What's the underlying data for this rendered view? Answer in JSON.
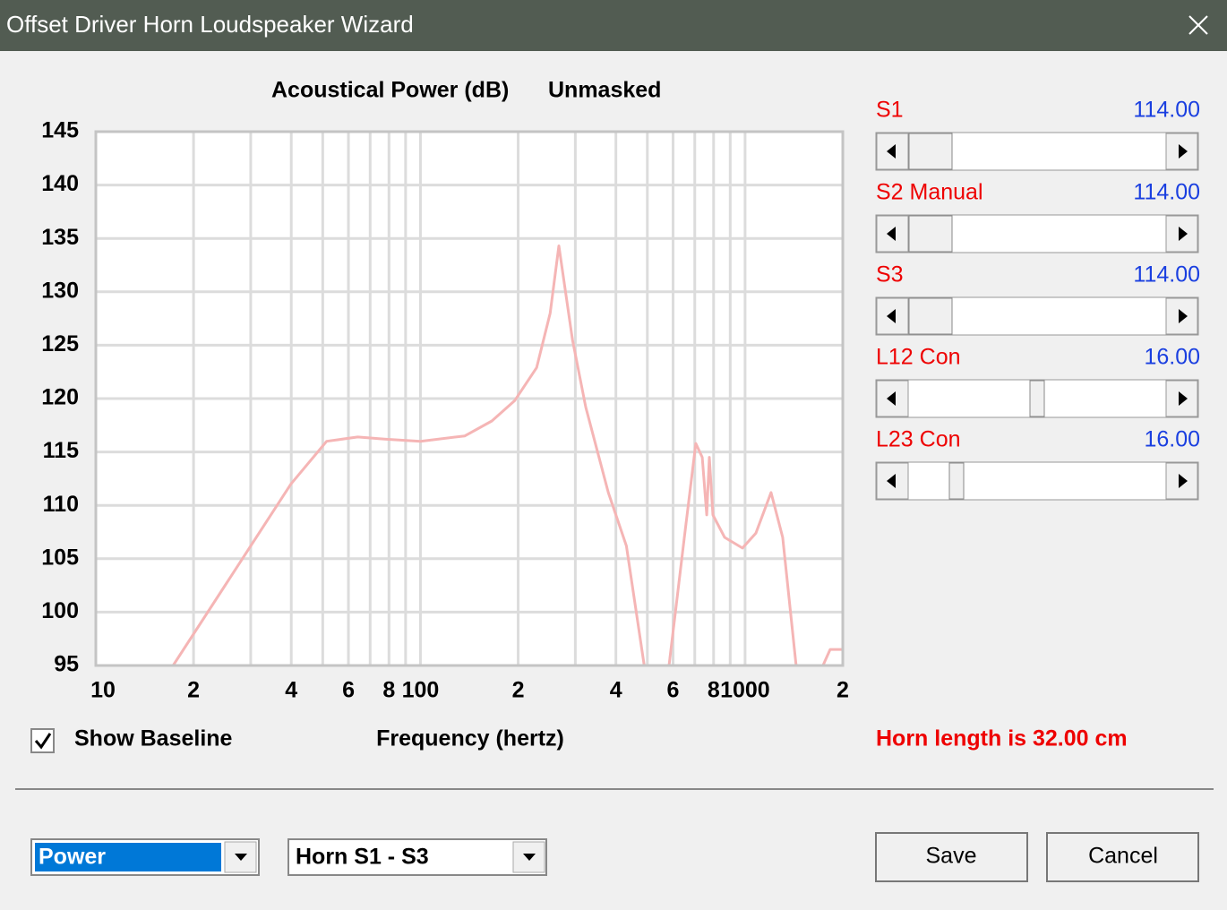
{
  "window": {
    "title": "Offset Driver Horn Loudspeaker Wizard"
  },
  "chart_data": {
    "type": "line",
    "title": "Acoustical Power (dB)",
    "subtitle": "Unmasked",
    "x_label": "Frequency (hertz)",
    "x": [
      17.3,
      39.9,
      51.4,
      64.1,
      77.5,
      100,
      137,
      166,
      195,
      228,
      251,
      267,
      294,
      323,
      379,
      431,
      489,
      530,
      583,
      650,
      705,
      738,
      762,
      776,
      796,
      865,
      982,
      1080,
      1202,
      1306,
      1436,
      1600,
      1738,
      1829,
      2000
    ],
    "values": [
      95,
      112,
      116,
      116.4,
      116.2,
      116,
      116.5,
      117.9,
      119.8,
      122.9,
      128,
      134.3,
      125.5,
      119.2,
      111.2,
      106.2,
      95,
      null,
      95,
      107,
      115.8,
      114.5,
      109.1,
      114.5,
      109.1,
      107,
      106,
      107.4,
      111.2,
      107,
      95,
      null,
      95,
      96.5,
      96.5
    ],
    "color": "#f5b5b5",
    "log_x": true,
    "xlim": [
      10,
      2000
    ],
    "xticks": [
      10,
      {
        "value": 20,
        "label": "2"
      },
      {
        "value": 40,
        "label": "4"
      },
      {
        "value": 60,
        "label": "6"
      },
      {
        "value": 80,
        "label": "8"
      },
      100,
      {
        "value": 200,
        "label": "2"
      },
      {
        "value": 400,
        "label": "4"
      },
      {
        "value": 600,
        "label": "6"
      },
      {
        "value": 800,
        "label": "8"
      },
      1000,
      {
        "value": 2000,
        "label": "2"
      }
    ],
    "x_minor_grid": [
      30,
      50,
      70,
      90,
      300,
      500,
      700,
      900
    ],
    "ylim": [
      95,
      145
    ],
    "yticks": [
      95,
      100,
      105,
      110,
      115,
      120,
      125,
      130,
      135,
      140,
      145
    ],
    "grid": true
  },
  "sliders": [
    {
      "label": "S1",
      "value": "114.00"
    },
    {
      "label": "S2  Manual",
      "value": "114.00"
    },
    {
      "label": "S3",
      "value": "114.00"
    },
    {
      "label": "L12  Con",
      "value": "16.00"
    },
    {
      "label": "L23  Con",
      "value": "16.00"
    }
  ],
  "show_baseline": {
    "label": "Show Baseline",
    "checked": true
  },
  "horn_length": "Horn length is 32.00 cm",
  "dropdowns": [
    {
      "value": "Power"
    },
    {
      "value": "Horn S1 - S3"
    }
  ],
  "buttons": [
    "Save",
    "Cancel"
  ]
}
